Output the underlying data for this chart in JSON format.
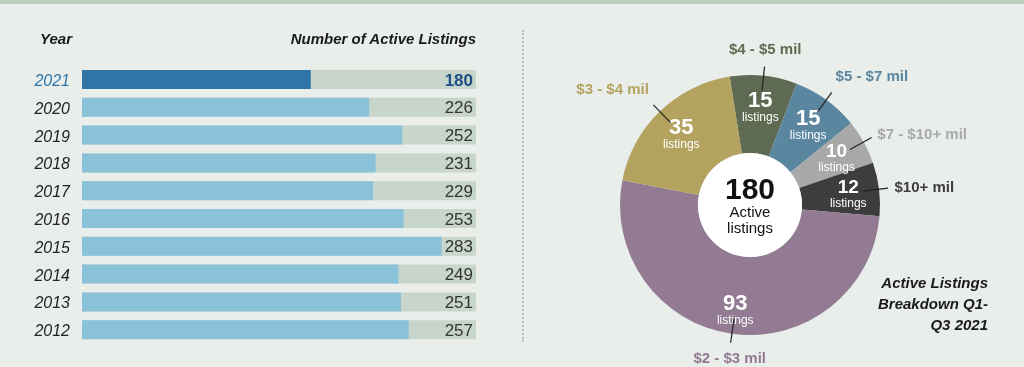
{
  "chart_data": [
    {
      "type": "bar",
      "orientation": "horizontal",
      "title": "Number of Active Listings",
      "ylabel": "Year",
      "categories": [
        "2021",
        "2020",
        "2019",
        "2018",
        "2017",
        "2016",
        "2015",
        "2014",
        "2013",
        "2012"
      ],
      "values": [
        180,
        226,
        252,
        231,
        229,
        253,
        283,
        249,
        251,
        257
      ],
      "colors": [
        "#2f75a8",
        "#8ac2da",
        "#8ac2da",
        "#8ac2da",
        "#8ac2da",
        "#8ac2da",
        "#8ac2da",
        "#8ac2da",
        "#8ac2da",
        "#8ac2da"
      ],
      "xlim": [
        0,
        310
      ],
      "data_labels": true
    },
    {
      "type": "donut",
      "title": "Active Listings Breakdown Q1-Q3 2021",
      "categories": [
        "$4 - $5 mil",
        "$5 - $7 mil",
        "$7 - $10+ mil",
        "$10+ mil",
        "$2 - $3 mil",
        "$3 - $4 mil"
      ],
      "values": [
        15,
        15,
        10,
        12,
        93,
        35
      ],
      "colors": [
        "#5e6b52",
        "#5b86a0",
        "#a8a8a8",
        "#3d3d3d",
        "#937c93",
        "#b3a35f"
      ],
      "value_labels": [
        "15 listings",
        "15 listings",
        "10 listings",
        "12 listings",
        "93 listings",
        "35 listings"
      ],
      "annotations": [
        "180",
        "Active listings"
      ]
    }
  ]
}
